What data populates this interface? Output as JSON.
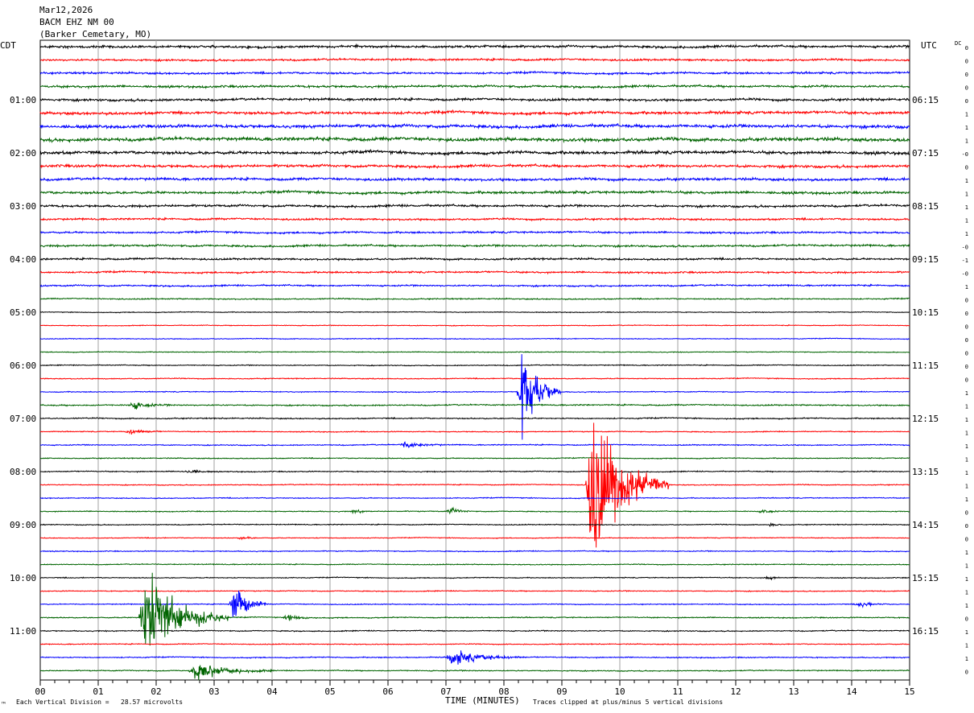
{
  "header": {
    "date": "Mar12,2026",
    "station": "BACM EHZ NM 00",
    "location": "(Barker Cemetary, MO)"
  },
  "left_tz": "CDT",
  "right_tz": "UTC",
  "dc_header": "DC",
  "footer": {
    "corner_mark": "™",
    "scale_note": "Each Vertical Division =   28.57 microvolts",
    "clip_note": "Traces clipped at plus/minus 5 vertical divisions"
  },
  "chart_data": {
    "type": "line",
    "title": "",
    "xlabel": "TIME (MINUTES)",
    "ylabel": "",
    "xlim": [
      0,
      15
    ],
    "x_ticks": [
      "00",
      "01",
      "02",
      "03",
      "04",
      "05",
      "06",
      "07",
      "08",
      "09",
      "10",
      "11",
      "12",
      "13",
      "14",
      "15"
    ],
    "rows_per_hour": 4,
    "trace_colors": [
      "#000000",
      "#ff0000",
      "#0000ff",
      "#006400"
    ],
    "left_labels": [
      {
        "row": 4,
        "text": "01:00"
      },
      {
        "row": 8,
        "text": "02:00"
      },
      {
        "row": 12,
        "text": "03:00"
      },
      {
        "row": 16,
        "text": "04:00"
      },
      {
        "row": 20,
        "text": "05:00"
      },
      {
        "row": 24,
        "text": "06:00"
      },
      {
        "row": 28,
        "text": "07:00"
      },
      {
        "row": 32,
        "text": "08:00"
      },
      {
        "row": 36,
        "text": "09:00"
      },
      {
        "row": 40,
        "text": "10:00"
      },
      {
        "row": 44,
        "text": "11:00"
      }
    ],
    "right_labels": [
      {
        "row": 4,
        "text": "06:15"
      },
      {
        "row": 8,
        "text": "07:15"
      },
      {
        "row": 12,
        "text": "08:15"
      },
      {
        "row": 16,
        "text": "09:15"
      },
      {
        "row": 20,
        "text": "10:15"
      },
      {
        "row": 24,
        "text": "11:15"
      },
      {
        "row": 28,
        "text": "12:15"
      },
      {
        "row": 32,
        "text": "13:15"
      },
      {
        "row": 36,
        "text": "14:15"
      },
      {
        "row": 40,
        "text": "15:15"
      },
      {
        "row": 44,
        "text": "16:15"
      }
    ],
    "dc_offsets": [
      "0",
      "0",
      "0",
      "0",
      "0",
      "1",
      "1",
      "1",
      "-0",
      "0",
      "1",
      "1",
      "1",
      "1",
      "1",
      "-0",
      "-1",
      "-0",
      "1",
      "0",
      "0",
      "0",
      "0",
      "0",
      "0",
      "0",
      "1",
      "1",
      "1",
      "1",
      "1",
      "1",
      "1",
      "1",
      "1",
      "0",
      "0",
      "0",
      "1",
      "1",
      "1",
      "1",
      "1",
      "0",
      "1",
      "1",
      "1",
      "0"
    ],
    "noise_levels": [
      0.9,
      0.75,
      0.75,
      0.85,
      0.9,
      1.05,
      1.2,
      1.3,
      1.15,
      1.0,
      0.95,
      0.95,
      0.85,
      0.7,
      0.7,
      0.75,
      0.7,
      0.65,
      0.6,
      0.45,
      0.3,
      0.3,
      0.3,
      0.3,
      0.35,
      0.35,
      0.35,
      0.5,
      0.45,
      0.35,
      0.4,
      0.35,
      0.4,
      0.35,
      0.35,
      0.35,
      0.35,
      0.3,
      0.35,
      0.35,
      0.35,
      0.35,
      0.35,
      0.4,
      0.4,
      0.35,
      0.4,
      0.4
    ],
    "events": [
      {
        "row": 26,
        "minute": 8.28,
        "amplitude": 52,
        "duration": 0.7
      },
      {
        "row": 27,
        "minute": 1.55,
        "amplitude": 4,
        "duration": 0.7
      },
      {
        "row": 29,
        "minute": 1.5,
        "amplitude": 3,
        "duration": 0.6
      },
      {
        "row": 30,
        "minute": 6.25,
        "amplitude": 4,
        "duration": 0.7
      },
      {
        "row": 32,
        "minute": 2.5,
        "amplitude": 2.5,
        "duration": 0.5
      },
      {
        "row": 33,
        "minute": 9.45,
        "amplitude": 78,
        "duration": 1.4
      },
      {
        "row": 35,
        "minute": 5.4,
        "amplitude": 3,
        "duration": 0.3
      },
      {
        "row": 35,
        "minute": 7.05,
        "amplitude": 4,
        "duration": 0.4
      },
      {
        "row": 35,
        "minute": 12.45,
        "amplitude": 3.5,
        "duration": 0.3
      },
      {
        "row": 36,
        "minute": 12.6,
        "amplitude": 3.5,
        "duration": 0.2
      },
      {
        "row": 37,
        "minute": 3.45,
        "amplitude": 3,
        "duration": 0.3
      },
      {
        "row": 40,
        "minute": 12.55,
        "amplitude": 4,
        "duration": 0.2
      },
      {
        "row": 42,
        "minute": 3.3,
        "amplitude": 24,
        "duration": 0.6
      },
      {
        "row": 42,
        "minute": 14.1,
        "amplitude": 4,
        "duration": 0.5
      },
      {
        "row": 43,
        "minute": 1.75,
        "amplitude": 52,
        "duration": 1.5
      },
      {
        "row": 43,
        "minute": 4.25,
        "amplitude": 4,
        "duration": 0.5
      },
      {
        "row": 46,
        "minute": 7.05,
        "amplitude": 8,
        "duration": 1.3
      },
      {
        "row": 47,
        "minute": 2.6,
        "amplitude": 9,
        "duration": 1.4
      }
    ]
  }
}
